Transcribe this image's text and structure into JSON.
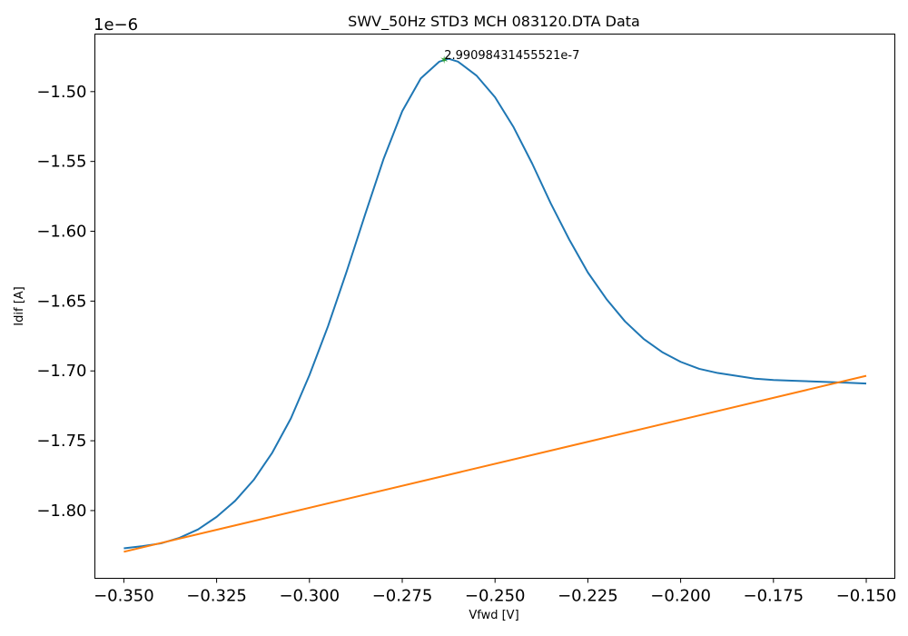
{
  "chart_data": {
    "type": "line",
    "title": "SWV_50Hz STD3 MCH 083120.DTA Data",
    "xlabel": "Vfwd [V]",
    "ylabel": "Idif [A]",
    "y_offset_label": "1e−6",
    "xlim": [
      -0.3578,
      -0.1423
    ],
    "ylim": [
      -1.8485,
      -1.4588
    ],
    "x_ticks": [
      -0.35,
      -0.325,
      -0.3,
      -0.275,
      -0.25,
      -0.225,
      -0.2,
      -0.175,
      -0.15
    ],
    "x_tick_labels": [
      "−0.350",
      "−0.325",
      "−0.300",
      "−0.275",
      "−0.250",
      "−0.225",
      "−0.200",
      "−0.175",
      "−0.150"
    ],
    "y_ticks": [
      -1.8,
      -1.75,
      -1.7,
      -1.65,
      -1.6,
      -1.55,
      -1.5
    ],
    "y_tick_labels": [
      "−1.80",
      "−1.75",
      "−1.70",
      "−1.65",
      "−1.60",
      "−1.55",
      "−1.50"
    ],
    "grid": false,
    "series": [
      {
        "color": "#1f77b4",
        "x": [
          -0.35,
          -0.345,
          -0.34,
          -0.335,
          -0.33,
          -0.325,
          -0.32,
          -0.315,
          -0.31,
          -0.305,
          -0.3,
          -0.295,
          -0.29,
          -0.285,
          -0.28,
          -0.275,
          -0.27,
          -0.265,
          -0.2625,
          -0.26,
          -0.255,
          -0.25,
          -0.245,
          -0.24,
          -0.235,
          -0.23,
          -0.225,
          -0.22,
          -0.215,
          -0.21,
          -0.205,
          -0.2,
          -0.195,
          -0.19,
          -0.185,
          -0.18,
          -0.175,
          -0.17,
          -0.165,
          -0.16,
          -0.155,
          -0.15
        ],
        "y": [
          -1.827,
          -1.8255,
          -1.8235,
          -1.8195,
          -1.8135,
          -1.8045,
          -1.793,
          -1.778,
          -1.7585,
          -1.734,
          -1.703,
          -1.668,
          -1.629,
          -1.588,
          -1.548,
          -1.514,
          -1.4905,
          -1.4785,
          -1.4765,
          -1.4785,
          -1.4885,
          -1.504,
          -1.5255,
          -1.5515,
          -1.58,
          -1.606,
          -1.6295,
          -1.6485,
          -1.6645,
          -1.677,
          -1.6865,
          -1.6935,
          -1.6985,
          -1.7015,
          -1.7035,
          -1.7055,
          -1.7065,
          -1.707,
          -1.7075,
          -1.708,
          -1.7085,
          -1.709
        ]
      },
      {
        "color": "#ff7f0e",
        "x": [
          -0.35,
          -0.15
        ],
        "y": [
          -1.8295,
          -1.7035
        ]
      }
    ],
    "peak": {
      "x": -0.2637,
      "y": -1.4775,
      "color": "#2ca02c",
      "label": "2.99098431455521e-7"
    }
  }
}
